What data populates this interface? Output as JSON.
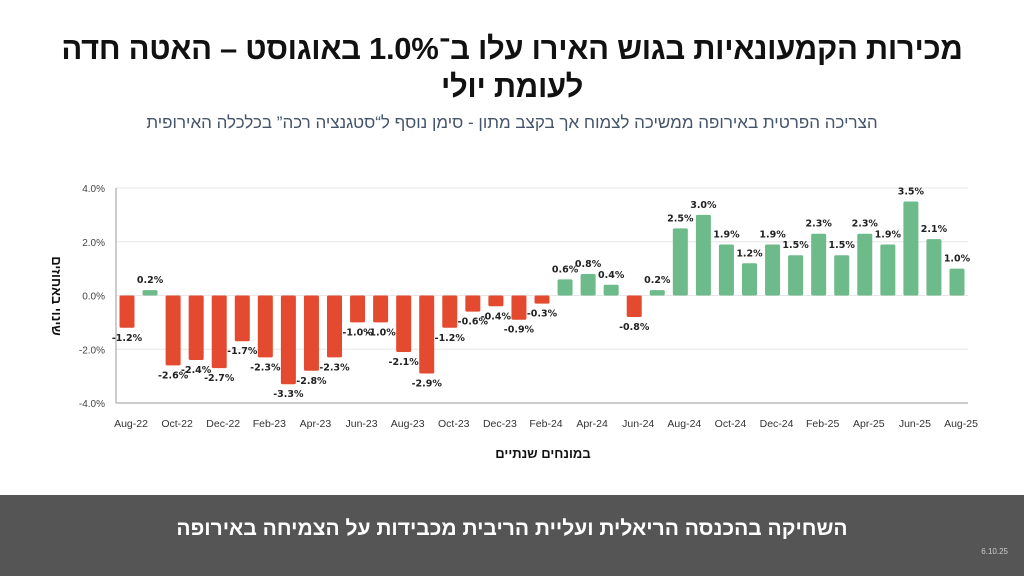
{
  "header": {
    "title": "מכירות הקמעונאיות בגוש האירו עלו ב־1.0% באוגוסט – האטה חדה לעומת יולי",
    "subtitle": "הצריכה הפרטית באירופה ממשיכה לצמוח אך בקצב מתון - סימן נוסף ל“סטגנציה רכה” בכלכלה האירופית"
  },
  "footer": {
    "text": "השחיקה בהכנסה הריאלית ועליית הריבית מכבידות על הצמיחה באירופה",
    "date": "6.10.25"
  },
  "colors": {
    "positive": "#6dbb8a",
    "negative": "#e34a2f"
  },
  "chart_data": {
    "type": "bar",
    "title": "",
    "xlabel": "במונחים שנתיים",
    "ylabel": "שינוי באחוזים",
    "ylim": [
      -4,
      4
    ],
    "yticks": [
      4,
      2,
      0,
      -2,
      -4
    ],
    "ytick_labels": [
      "4.0%",
      "2.0%",
      "0.0%",
      "-2.0%",
      "-4.0%"
    ],
    "grid": true,
    "legend": "none",
    "categories": [
      "Aug-22",
      "Sep-22",
      "Oct-22",
      "Nov-22",
      "Dec-22",
      "Jan-23",
      "Feb-23",
      "Mar-23",
      "Apr-23",
      "May-23",
      "Jun-23",
      "Jul-23",
      "Aug-23",
      "Sep-23",
      "Oct-23",
      "Nov-23",
      "Dec-23",
      "Jan-24",
      "Feb-24",
      "Mar-24",
      "Apr-24",
      "May-24",
      "Jun-24",
      "Jul-24",
      "Aug-24",
      "Sep-24",
      "Oct-24",
      "Nov-24",
      "Dec-24",
      "Jan-25",
      "Feb-25",
      "Mar-25",
      "Apr-25",
      "May-25",
      "Jun-25",
      "Jul-25",
      "Aug-25"
    ],
    "xtick_labels": [
      "Aug-22",
      "Oct-22",
      "Dec-22",
      "Feb-23",
      "Apr-23",
      "Jun-23",
      "Aug-23",
      "Oct-23",
      "Dec-23",
      "Feb-24",
      "Apr-24",
      "Jun-24",
      "Aug-24",
      "Oct-24",
      "Dec-24",
      "Feb-25",
      "Apr-25",
      "Jun-25",
      "Aug-25"
    ],
    "values": [
      -1.2,
      0.2,
      -2.6,
      -2.4,
      -2.7,
      -1.7,
      -2.3,
      -3.3,
      -2.8,
      -2.3,
      -1.0,
      -1.0,
      -2.1,
      -2.9,
      -1.2,
      -0.6,
      -0.4,
      -0.9,
      -0.3,
      0.6,
      0.8,
      0.4,
      -0.8,
      0.2,
      2.5,
      3.0,
      1.9,
      1.2,
      1.9,
      1.5,
      2.3,
      1.5,
      2.3,
      1.9,
      3.5,
      2.1,
      1.0
    ],
    "data_labels": [
      "-1.2%",
      "0.2%",
      "-2.6%",
      "-2.4%",
      "-2.7%",
      "-1.7%",
      "-2.3%",
      "-3.3%",
      "-2.8%",
      "-2.3%",
      "-1.0%",
      "-1.0%",
      "-2.1%",
      "-2.9%",
      "-1.2%",
      "-0.6%",
      "-0.4%",
      "-0.9%",
      "-0.3%",
      "0.6%",
      "0.8%",
      "0.4%",
      "-0.8%",
      "0.2%",
      "2.5%",
      "3.0%",
      "1.9%",
      "1.2%",
      "1.9%",
      "1.5%",
      "2.3%",
      "1.5%",
      "2.3%",
      "1.9%",
      "3.5%",
      "2.1%",
      "1.0%"
    ]
  }
}
